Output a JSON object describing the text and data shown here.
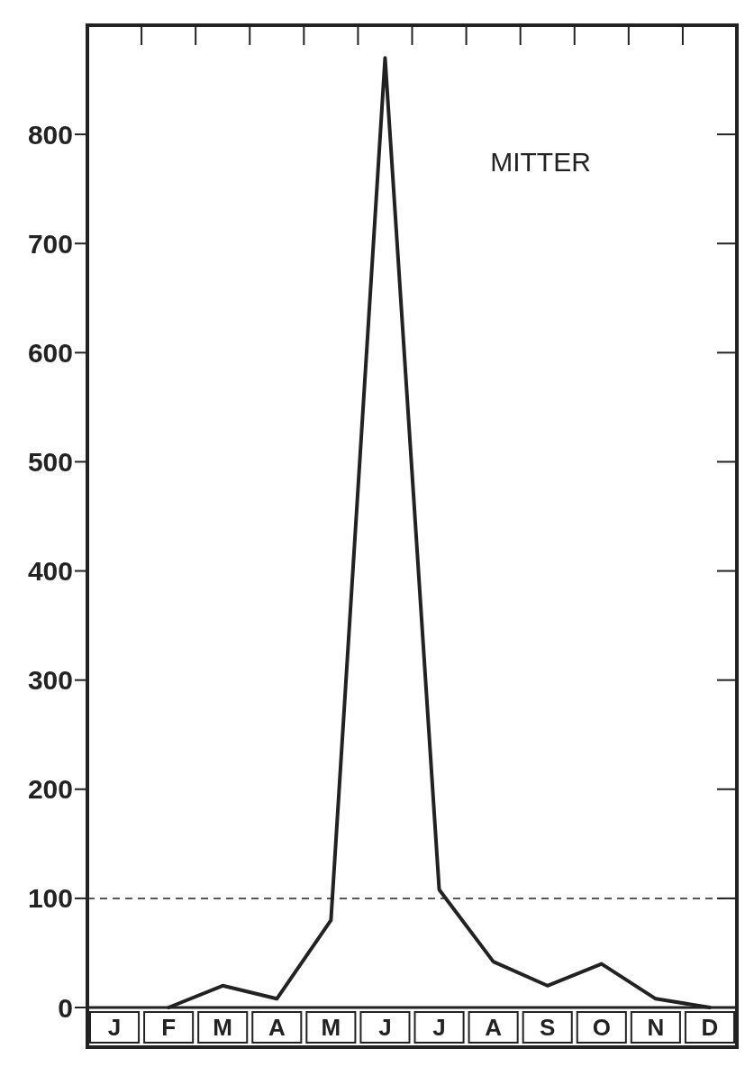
{
  "chart_data": {
    "type": "line",
    "categories": [
      "J",
      "F",
      "M",
      "A",
      "M",
      "J",
      "J",
      "A",
      "S",
      "O",
      "N",
      "D"
    ],
    "series": [
      {
        "color": "#222222",
        "values": [
          null,
          0,
          20,
          8,
          80,
          870,
          108,
          42,
          20,
          40,
          8,
          0
        ]
      }
    ],
    "ylim": [
      0,
      900
    ],
    "yticks": [
      0,
      100,
      200,
      300,
      400,
      500,
      600,
      700,
      800
    ],
    "ref_lines": [
      {
        "axis": "y",
        "value": 100,
        "line_style": "dashed",
        "color": "#222222"
      }
    ],
    "annotations": [
      "MITTER"
    ],
    "grid": false,
    "marker": "none",
    "line_style": "solid"
  }
}
